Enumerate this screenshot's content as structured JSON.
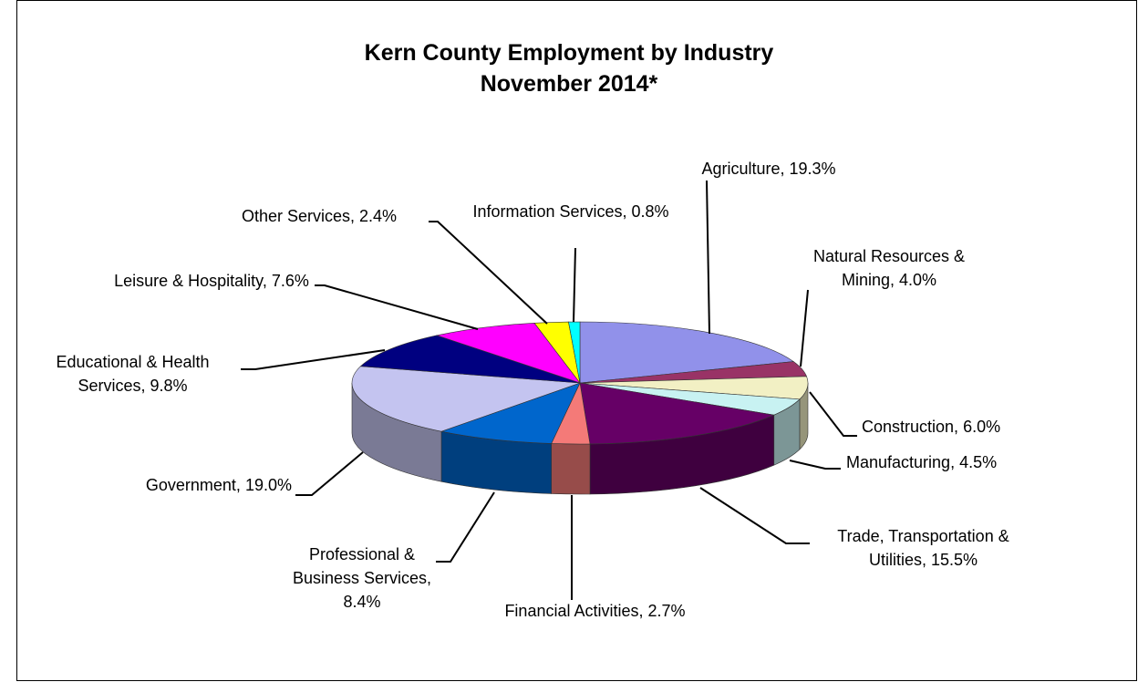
{
  "chart_data": {
    "type": "pie3d",
    "title": "Kern County Employment by Industry",
    "subtitle": "November 2014*",
    "categories": [
      "Agriculture,",
      "Natural Resources & Mining,",
      "Construction,",
      "Manufacturing,",
      "Trade, Transportation & Utilities,",
      "Financial Activities,",
      "Professional & Business Services,",
      "Government,",
      "Educational & Health Services,",
      "Leisure & Hospitality,",
      "Other Services,",
      "Information Services,"
    ],
    "values": [
      19.3,
      4.0,
      6.0,
      4.5,
      15.5,
      2.7,
      8.4,
      19.0,
      9.8,
      7.6,
      2.4,
      0.8
    ],
    "value_labels": [
      "19.3%",
      "4.0%",
      "6.0%",
      "4.5%",
      "15.5%",
      "2.7%",
      "8.4%",
      "19.0%",
      "9.8%",
      "7.6%",
      "2.4%",
      "0.8%"
    ],
    "colors": [
      "#9191ea",
      "#993366",
      "#f2f0c4",
      "#c8f2f2",
      "#660066",
      "#f47a78",
      "#0066cc",
      "#c4c4f0",
      "#000080",
      "#ff00ff",
      "#ffff00",
      "#00ffff"
    ]
  }
}
